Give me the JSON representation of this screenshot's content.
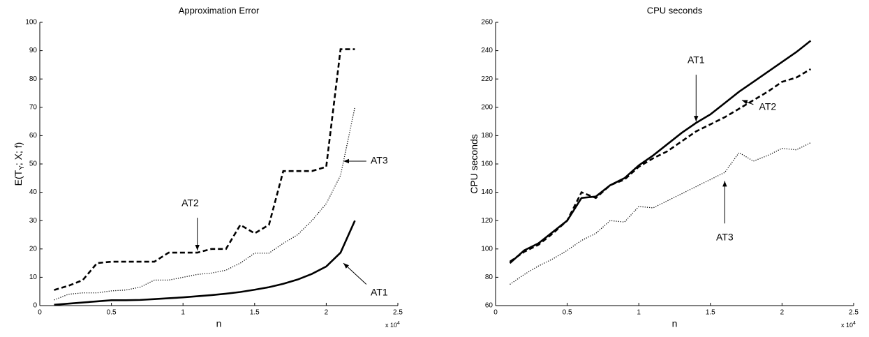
{
  "chart_data": [
    {
      "type": "line",
      "title": "Approximation Error",
      "xlabel": "n",
      "ylabel": [
        "E(T",
        "Y",
        "; X; f)"
      ],
      "x_scale_label": [
        "x 10",
        "4"
      ],
      "x": [
        0.1,
        0.2,
        0.3,
        0.4,
        0.5,
        0.6,
        0.7,
        0.8,
        0.9,
        1.0,
        1.1,
        1.2,
        1.3,
        1.4,
        1.5,
        1.6,
        1.7,
        1.8,
        1.9,
        2.0,
        2.1,
        2.2
      ],
      "xlim": [
        0,
        2.5
      ],
      "xticks": [
        0,
        0.5,
        1,
        1.5,
        2,
        2.5
      ],
      "ylim": [
        0,
        100
      ],
      "yticks": [
        0,
        10,
        20,
        30,
        40,
        50,
        60,
        70,
        80,
        90,
        100
      ],
      "series": [
        {
          "name": "AT1",
          "color": "#000000",
          "line_style": "solid",
          "values": [
            0.3,
            0.7,
            1.1,
            1.5,
            1.9,
            1.9,
            2.0,
            2.3,
            2.6,
            2.9,
            3.3,
            3.7,
            4.2,
            4.8,
            5.6,
            6.5,
            7.7,
            9.2,
            11.2,
            13.8,
            18.7,
            30
          ]
        },
        {
          "name": "AT2",
          "color": "#000000",
          "line_style": "dashed",
          "values": [
            5.5,
            7,
            9,
            15,
            15.5,
            15.5,
            15.5,
            15.5,
            18.7,
            18.7,
            18.7,
            20,
            20,
            28.5,
            25.5,
            28.5,
            47.5,
            47.5,
            47.5,
            49,
            90.5,
            90.5
          ]
        },
        {
          "name": "AT3",
          "color": "#000000",
          "line_style": "dotted",
          "values": [
            2,
            4,
            4.5,
            4.5,
            5.2,
            5.5,
            6.5,
            9,
            9,
            10,
            11,
            11.5,
            12.5,
            15,
            18.5,
            18.5,
            22,
            25,
            30,
            36,
            46,
            70
          ]
        }
      ]
    },
    {
      "type": "line",
      "title": "CPU seconds",
      "xlabel": "n",
      "ylabel": [
        "CPU seconds"
      ],
      "x_scale_label": [
        "x 10",
        "4"
      ],
      "x": [
        0.1,
        0.2,
        0.3,
        0.4,
        0.5,
        0.6,
        0.7,
        0.8,
        0.9,
        1.0,
        1.1,
        1.2,
        1.3,
        1.4,
        1.5,
        1.6,
        1.7,
        1.8,
        1.9,
        2.0,
        2.1,
        2.2
      ],
      "xlim": [
        0,
        2.5
      ],
      "xticks": [
        0,
        0.5,
        1,
        1.5,
        2,
        2.5
      ],
      "ylim": [
        60,
        260
      ],
      "yticks": [
        60,
        80,
        100,
        120,
        140,
        160,
        180,
        200,
        220,
        240,
        260
      ],
      "series": [
        {
          "name": "AT1",
          "color": "#000000",
          "line_style": "solid",
          "values": [
            90,
            99,
            104,
            112,
            120,
            136,
            137,
            145,
            150,
            159,
            166,
            174,
            182,
            189,
            195,
            203,
            211,
            218,
            225,
            232,
            239,
            247
          ]
        },
        {
          "name": "AT2",
          "color": "#000000",
          "line_style": "dashed",
          "values": [
            91,
            98,
            103,
            111,
            120,
            140,
            136,
            145,
            149,
            158,
            164,
            169,
            176,
            183,
            188,
            193,
            199,
            205,
            211,
            218,
            221,
            227
          ]
        },
        {
          "name": "AT3",
          "color": "#000000",
          "line_style": "dotted",
          "values": [
            75,
            82,
            88,
            93,
            99,
            106,
            111,
            120,
            119,
            130,
            129,
            134,
            139,
            144,
            149,
            154,
            168,
            162,
            166,
            171,
            170,
            175
          ]
        }
      ]
    }
  ]
}
